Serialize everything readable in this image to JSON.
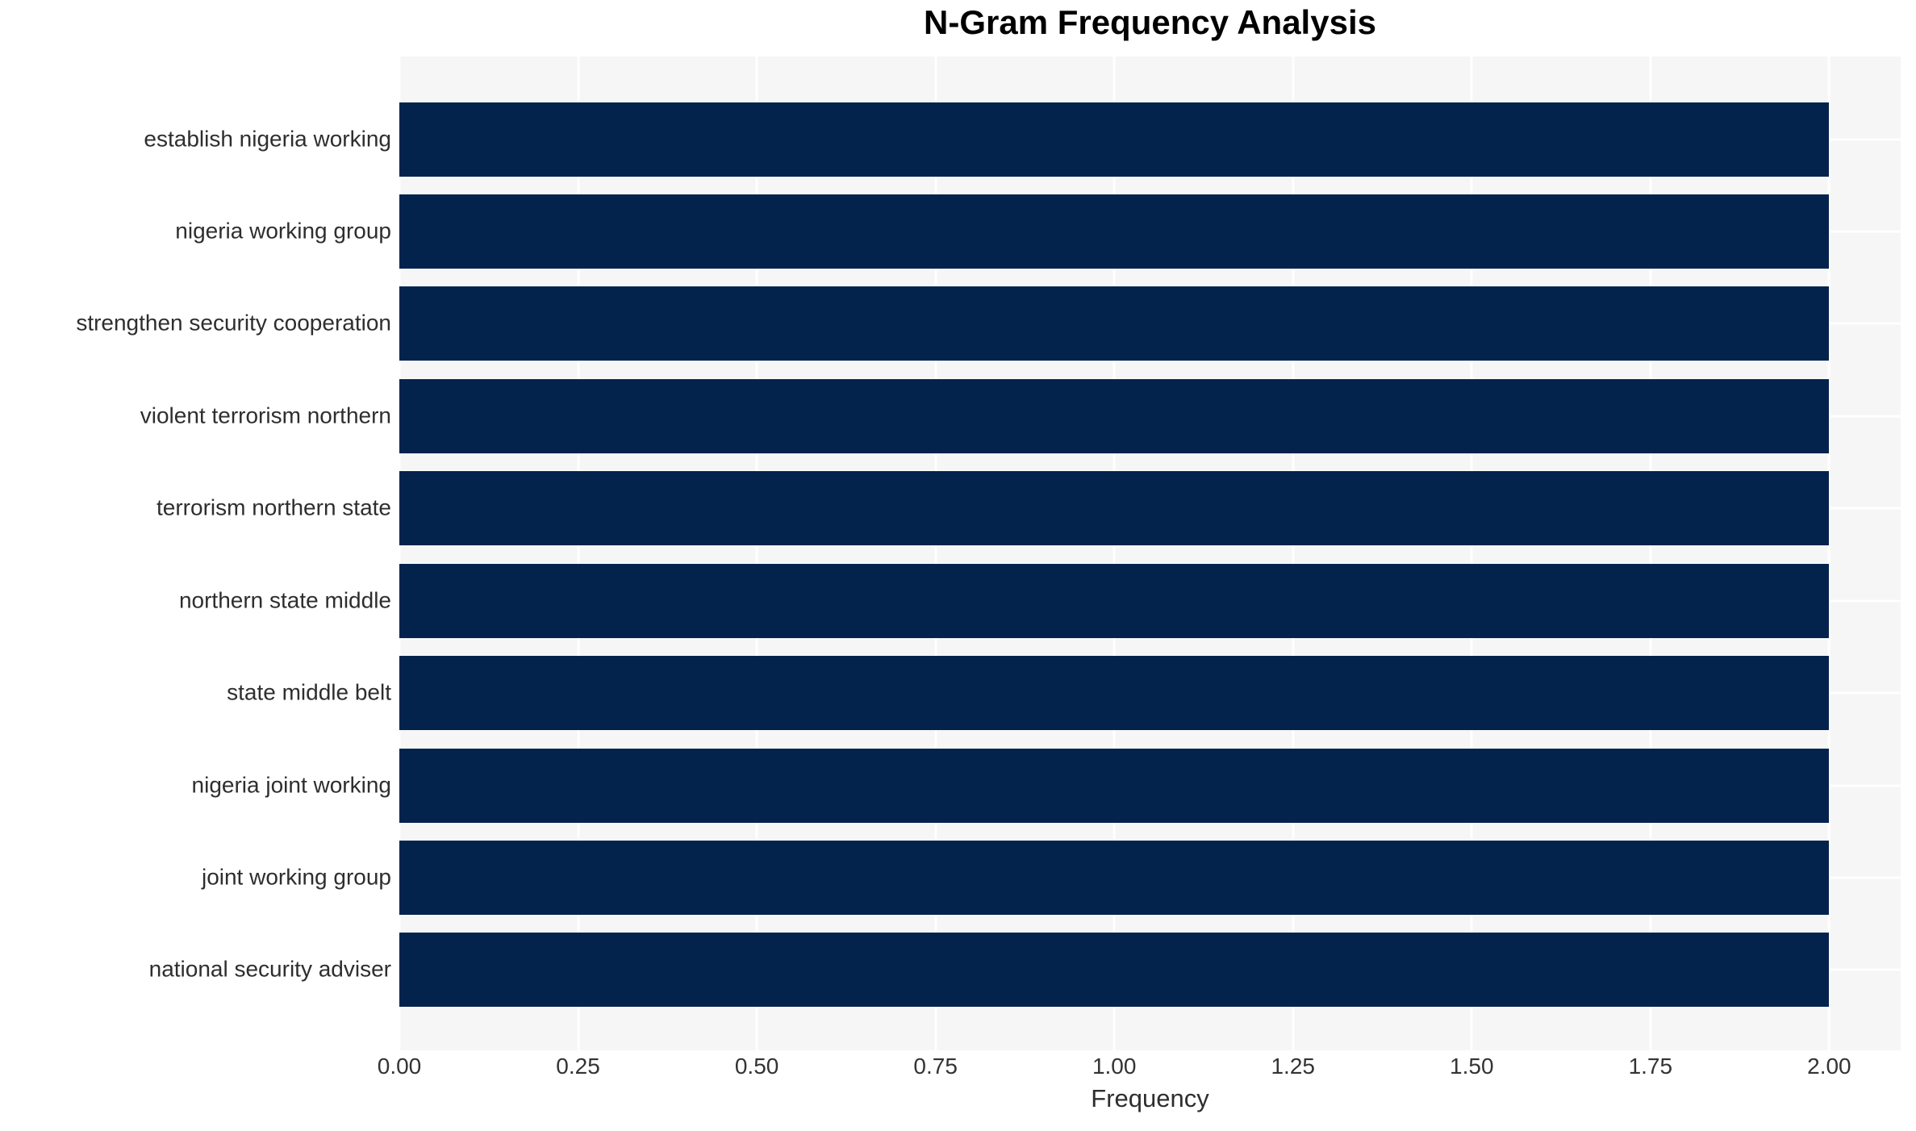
{
  "chart_data": {
    "type": "bar",
    "orientation": "horizontal",
    "title": "N-Gram Frequency Analysis",
    "xlabel": "Frequency",
    "ylabel": "",
    "categories": [
      "establish nigeria working",
      "nigeria working group",
      "strengthen security cooperation",
      "violent terrorism northern",
      "terrorism northern state",
      "northern state middle",
      "state middle belt",
      "nigeria joint working",
      "joint working group",
      "national security adviser"
    ],
    "values": [
      2,
      2,
      2,
      2,
      2,
      2,
      2,
      2,
      2,
      2
    ],
    "xlim": [
      0,
      2.1
    ],
    "xticks": [
      {
        "value": 0.0,
        "label": "0.00"
      },
      {
        "value": 0.25,
        "label": "0.25"
      },
      {
        "value": 0.5,
        "label": "0.50"
      },
      {
        "value": 0.75,
        "label": "0.75"
      },
      {
        "value": 1.0,
        "label": "1.00"
      },
      {
        "value": 1.25,
        "label": "1.25"
      },
      {
        "value": 1.5,
        "label": "1.50"
      },
      {
        "value": 1.75,
        "label": "1.75"
      },
      {
        "value": 2.0,
        "label": "2.00"
      }
    ],
    "grid": true,
    "legend": false,
    "colors": {
      "bar": "#03234d",
      "plot_bg": "#f6f6f7",
      "grid": "#ffffff",
      "title_text": "#000000",
      "axis_text": "#333333",
      "label_text": "#2e2e2e",
      "page_bg": "#ffffff"
    }
  }
}
